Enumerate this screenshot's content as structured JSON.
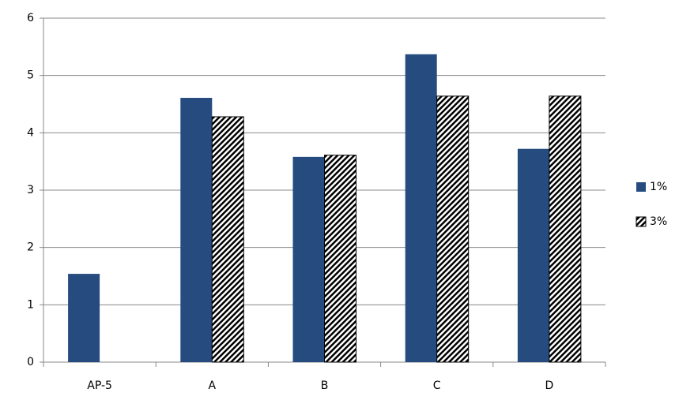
{
  "chart_data": {
    "type": "bar",
    "categories": [
      "AP-5",
      "A",
      "B",
      "C",
      "D"
    ],
    "series": [
      {
        "name": "1%",
        "color": "#254b7f",
        "values": [
          1.54,
          4.61,
          3.58,
          5.37,
          3.72
        ]
      },
      {
        "name": "3%",
        "color": "#000000",
        "pattern": "hatch",
        "values": [
          null,
          4.28,
          3.61,
          4.64,
          4.64
        ]
      }
    ],
    "ylim": [
      0,
      6
    ],
    "yticks": [
      0,
      1,
      2,
      3,
      4,
      5,
      6
    ],
    "grid": true,
    "legend": "right"
  }
}
